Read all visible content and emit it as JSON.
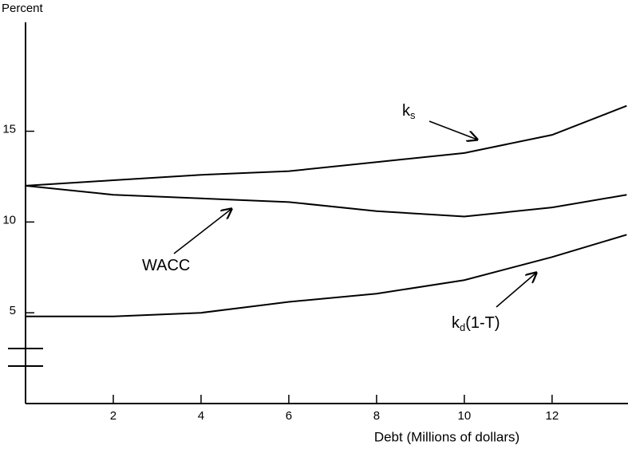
{
  "chart_data": {
    "type": "line",
    "y_label": "Percent",
    "x_label": "Debt (Millions of dollars)",
    "x": [
      0,
      2,
      4,
      6,
      8,
      10,
      12,
      13.7
    ],
    "series": [
      {
        "color": "#000000",
        "values": [
          12.0,
          12.3,
          12.6,
          12.8,
          13.3,
          13.8,
          14.8,
          16.4
        ]
      },
      {
        "color": "#000000",
        "values": [
          12.0,
          11.5,
          11.3,
          11.1,
          10.6,
          10.3,
          10.8,
          11.5
        ]
      },
      {
        "color": "#000000",
        "values": [
          4.8,
          4.8,
          5.0,
          5.6,
          6.05,
          6.8,
          8.07,
          9.3
        ]
      }
    ],
    "annotations": [
      {
        "text": "k",
        "sub": "s"
      },
      {
        "text": "WACC"
      },
      {
        "text": "k",
        "sub": "d",
        "suffix": "(1-T)"
      }
    ],
    "xlim": [
      0,
      13.73
    ],
    "ylim": [
      0,
      21
    ],
    "xticks": [
      2,
      4,
      6,
      8,
      10,
      12
    ],
    "yticks": [
      5,
      10,
      15
    ],
    "grid": false
  }
}
